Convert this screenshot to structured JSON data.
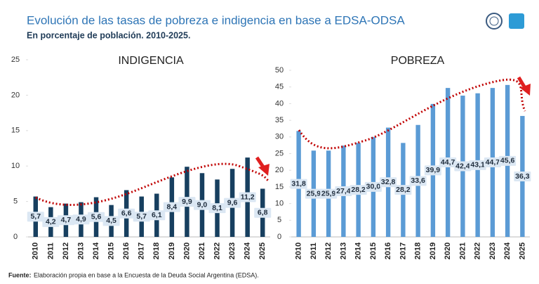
{
  "header": {
    "title": "Evolución de las tasas de pobreza e indigencia en base a EDSA-ODSA",
    "subtitle": "En porcentaje de población. 2010-2025."
  },
  "chart_data": [
    {
      "type": "bar",
      "title": "INDIGENCIA",
      "categories": [
        "2010",
        "2011",
        "2012",
        "2013",
        "2014",
        "2015",
        "2016",
        "2017",
        "2018",
        "2019",
        "2020",
        "2021",
        "2022",
        "2023",
        "2024",
        "2025"
      ],
      "values": [
        5.7,
        4.2,
        4.7,
        4.9,
        5.6,
        4.5,
        6.6,
        5.7,
        6.1,
        8.4,
        9.9,
        9.0,
        8.1,
        9.6,
        11.2,
        6.8
      ],
      "value_labels": [
        "5,7",
        "4,2",
        "4,7",
        "4,9",
        "5,6",
        "4,5",
        "6,6",
        "5,7",
        "6,1",
        "8,4",
        "9,9",
        "9,0",
        "8,1",
        "9,6",
        "11,2",
        "6,8"
      ],
      "color": "#173f5f",
      "ylim": [
        0,
        25
      ],
      "yticks": [
        0,
        5,
        10,
        15,
        20,
        25
      ]
    },
    {
      "type": "bar",
      "title": "POBREZA",
      "categories": [
        "2010",
        "2011",
        "2012",
        "2013",
        "2014",
        "2015",
        "2016",
        "2017",
        "2018",
        "2019",
        "2020",
        "2021",
        "2022",
        "2023",
        "2024",
        "2025"
      ],
      "values": [
        31.8,
        25.9,
        25.9,
        27.4,
        28.2,
        30.0,
        32.8,
        28.2,
        33.6,
        39.9,
        44.7,
        42.4,
        43.1,
        44.7,
        45.6,
        36.3
      ],
      "value_labels": [
        "31,8",
        "25,9",
        "25,9",
        "27,4",
        "28,2",
        "30,0",
        "32,8",
        "28,2",
        "33,6",
        "39,9",
        "44,7",
        "42,4",
        "43,1",
        "44,7",
        "45,6",
        "36,3"
      ],
      "color": "#5b9bd5",
      "ylim": [
        0,
        50
      ],
      "yticks": [
        0,
        5,
        10,
        15,
        20,
        25,
        30,
        35,
        40,
        45,
        50
      ]
    }
  ],
  "footer": {
    "source_label": "Fuente:",
    "source_text": "Elaboración propia en base a la Encuesta de la Deuda Social Argentina (EDSA)."
  }
}
